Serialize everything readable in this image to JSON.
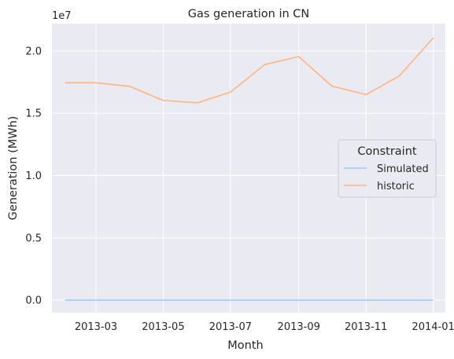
{
  "chart_data": {
    "type": "line",
    "title": "Gas generation in CN",
    "xlabel": "Month",
    "ylabel": "Generation (MWh)",
    "y_offset_label": "1e7",
    "x": [
      "2013-02",
      "2013-03",
      "2013-04",
      "2013-05",
      "2013-06",
      "2013-07",
      "2013-08",
      "2013-09",
      "2013-10",
      "2013-11",
      "2013-12",
      "2014-01"
    ],
    "series": [
      {
        "name": "Simulated",
        "color": "#a1c9f4",
        "values": [
          0,
          0,
          0,
          0,
          0,
          0,
          0,
          0,
          0,
          0,
          0,
          0
        ]
      },
      {
        "name": "historic",
        "color": "#ffb482",
        "values": [
          17450000,
          17450000,
          17150000,
          16030000,
          15840000,
          16700000,
          18900000,
          19550000,
          17180000,
          16500000,
          17980000,
          21050000
        ]
      }
    ],
    "x_ticks": [
      "2013-03",
      "2013-05",
      "2013-07",
      "2013-09",
      "2013-11",
      "2014-01"
    ],
    "y_ticks": [
      "0.0",
      "0.5",
      "1.0",
      "1.5",
      "2.0"
    ],
    "xlim": [
      "2013-01-20",
      "2014-01-12"
    ],
    "ylim": [
      -1000000,
      22200000
    ],
    "grid": true,
    "legend": {
      "title": "Constraint",
      "placement": "center-right"
    },
    "style": {
      "axes_bg": "#eaeaf2",
      "grid_color": "#ffffff"
    }
  }
}
